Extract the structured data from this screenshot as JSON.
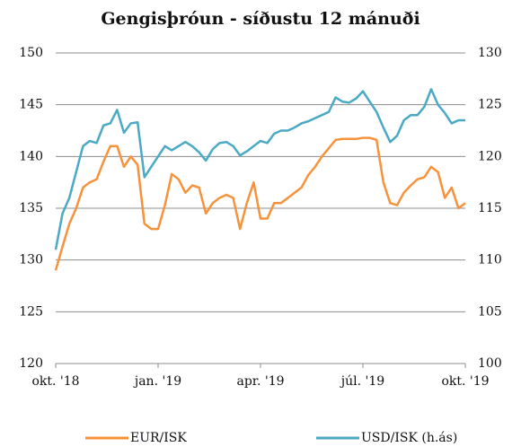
{
  "chart_data": {
    "type": "line",
    "title": "Gengisþróun - síðustu 12 mánuði",
    "x": [
      0,
      0.2,
      0.4,
      0.6,
      0.8,
      1,
      1.2,
      1.4,
      1.6,
      1.8,
      2,
      2.2,
      2.4,
      2.6,
      2.8,
      3,
      3.2,
      3.4,
      3.6,
      3.8,
      4,
      4.2,
      4.4,
      4.6,
      4.8,
      5,
      5.2,
      5.4,
      5.6,
      5.8,
      6,
      6.2,
      6.4,
      6.6,
      6.8,
      7,
      7.2,
      7.4,
      7.6,
      7.8,
      8,
      8.2,
      8.4,
      8.6,
      8.8,
      9,
      9.2,
      9.4,
      9.6,
      9.8,
      10,
      10.2,
      10.4,
      10.6,
      10.8,
      11,
      11.2,
      11.4,
      11.6,
      11.8,
      12
    ],
    "xlim": [
      0,
      12
    ],
    "xticks": [
      {
        "value": 0,
        "label": "okt. '18"
      },
      {
        "value": 3,
        "label": "jan. '19"
      },
      {
        "value": 6,
        "label": "apr. '19"
      },
      {
        "value": 9,
        "label": "júl. '19"
      },
      {
        "value": 12,
        "label": "okt. '19"
      }
    ],
    "ylim": [
      120,
      150
    ],
    "yticks": [
      120,
      125,
      130,
      135,
      140,
      145,
      150
    ],
    "y2lim": [
      100,
      130
    ],
    "y2ticks": [
      100,
      105,
      110,
      115,
      120,
      125,
      130
    ],
    "grid": true,
    "legend": "bottom",
    "series": [
      {
        "name": "EUR/ISK",
        "color": "#f7923a",
        "values": [
          129,
          131.3,
          133.5,
          135,
          137,
          137.5,
          137.8,
          139.5,
          141,
          141,
          139,
          140,
          139.2,
          133.5,
          133,
          133,
          135.3,
          138.3,
          137.8,
          136.5,
          137.2,
          137,
          134.5,
          135.5,
          136,
          136.3,
          136,
          133,
          135.5,
          137.5,
          134,
          134,
          135.5,
          135.5,
          136,
          136.5,
          137,
          138.2,
          139,
          140,
          140.8,
          141.6,
          141.7,
          141.7,
          141.7,
          141.8,
          141.8,
          141.6,
          137.5,
          135.5,
          135.3,
          136.5,
          137.2,
          137.8,
          138,
          139,
          138.5,
          136,
          137,
          135,
          135.5
        ]
      },
      {
        "name": "USD/ISK (h.ás)",
        "color": "#4aa9c4",
        "axis": "y2",
        "values": [
          111,
          114.5,
          116,
          118.5,
          121,
          121.5,
          121.3,
          123,
          123.2,
          124.5,
          122.3,
          123.2,
          123.3,
          118,
          119,
          120,
          121,
          120.6,
          121,
          121.4,
          121,
          120.4,
          119.6,
          120.7,
          121.3,
          121.4,
          121,
          120.1,
          120.5,
          121,
          121.5,
          121.3,
          122.2,
          122.5,
          122.5,
          122.8,
          123.2,
          123.4,
          123.7,
          124,
          124.3,
          125.7,
          125.3,
          125.2,
          125.6,
          126.3,
          125.3,
          124.3,
          122.8,
          121.4,
          122,
          123.5,
          124,
          124,
          124.8,
          126.5,
          125,
          124.2,
          123.2,
          123.5,
          123.5
        ]
      }
    ]
  }
}
